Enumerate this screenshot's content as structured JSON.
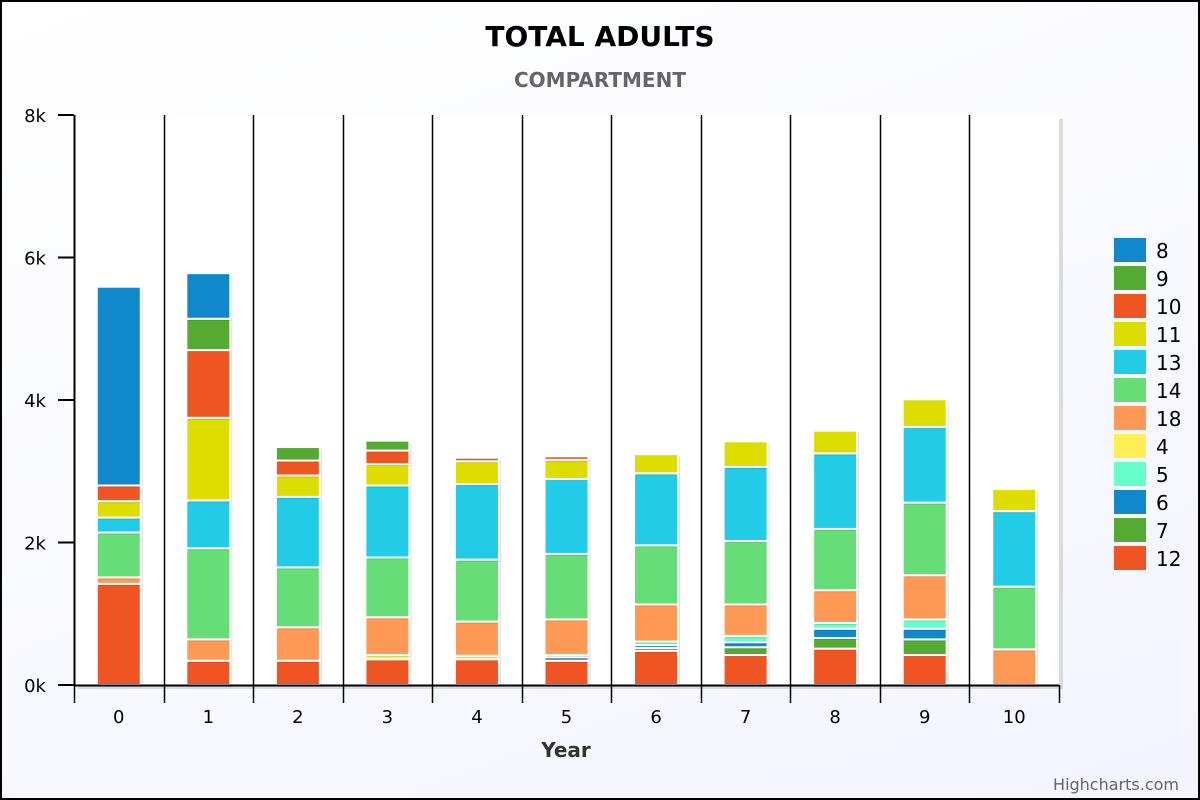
{
  "credits": "Highcharts.com",
  "chart_data": {
    "type": "bar",
    "stacked": true,
    "title": "TOTAL ADULTS",
    "subtitle": "COMPARTMENT",
    "xlabel": "Year",
    "ylabel": "",
    "categories": [
      "0",
      "1",
      "2",
      "3",
      "4",
      "5",
      "6",
      "7",
      "8",
      "9",
      "10"
    ],
    "ylim": [
      0,
      8000
    ],
    "yticks": [
      {
        "value": 0,
        "label": "0k"
      },
      {
        "value": 2000,
        "label": "2k"
      },
      {
        "value": 4000,
        "label": "4k"
      },
      {
        "value": 6000,
        "label": "6k"
      },
      {
        "value": 8000,
        "label": "8k"
      }
    ],
    "legend_position": "right",
    "series": [
      {
        "name": "12",
        "color": "#EE5522",
        "values": [
          1420,
          340,
          340,
          360,
          360,
          340,
          480,
          420,
          510,
          420,
          0
        ]
      },
      {
        "name": "7",
        "color": "#55AA33",
        "values": [
          0,
          0,
          0,
          0,
          0,
          0,
          40,
          110,
          150,
          220,
          0
        ]
      },
      {
        "name": "6",
        "color": "#1188CC",
        "values": [
          0,
          0,
          0,
          0,
          0,
          50,
          40,
          70,
          130,
          150,
          0
        ]
      },
      {
        "name": "5",
        "color": "#66FFCC",
        "values": [
          0,
          0,
          0,
          0,
          0,
          0,
          50,
          90,
          80,
          130,
          0
        ]
      },
      {
        "name": "4",
        "color": "#FFEE55",
        "values": [
          0,
          0,
          0,
          60,
          50,
          30,
          0,
          0,
          0,
          0,
          0
        ]
      },
      {
        "name": "18",
        "color": "#FF9955",
        "values": [
          90,
          300,
          470,
          530,
          480,
          500,
          520,
          440,
          460,
          620,
          500
        ]
      },
      {
        "name": "14",
        "color": "#66DD77",
        "values": [
          630,
          1280,
          840,
          840,
          870,
          920,
          830,
          890,
          860,
          1020,
          880
        ]
      },
      {
        "name": "13",
        "color": "#22CCE6",
        "values": [
          210,
          670,
          990,
          1010,
          1060,
          1050,
          1010,
          1040,
          1060,
          1060,
          1060
        ]
      },
      {
        "name": "11",
        "color": "#DDDD00",
        "values": [
          230,
          1160,
          300,
          300,
          320,
          270,
          270,
          360,
          320,
          390,
          310
        ]
      },
      {
        "name": "10",
        "color": "#EE5522",
        "values": [
          220,
          950,
          210,
          190,
          50,
          50,
          0,
          0,
          0,
          0,
          0
        ]
      },
      {
        "name": "9",
        "color": "#55AA33",
        "values": [
          0,
          440,
          190,
          140,
          0,
          0,
          0,
          0,
          0,
          0,
          0
        ]
      },
      {
        "name": "8",
        "color": "#1188CC",
        "values": [
          2790,
          640,
          0,
          0,
          0,
          0,
          0,
          0,
          0,
          0,
          0
        ]
      }
    ],
    "legend_order": [
      "8",
      "9",
      "10",
      "11",
      "13",
      "14",
      "18",
      "4",
      "5",
      "6",
      "7",
      "12"
    ]
  }
}
